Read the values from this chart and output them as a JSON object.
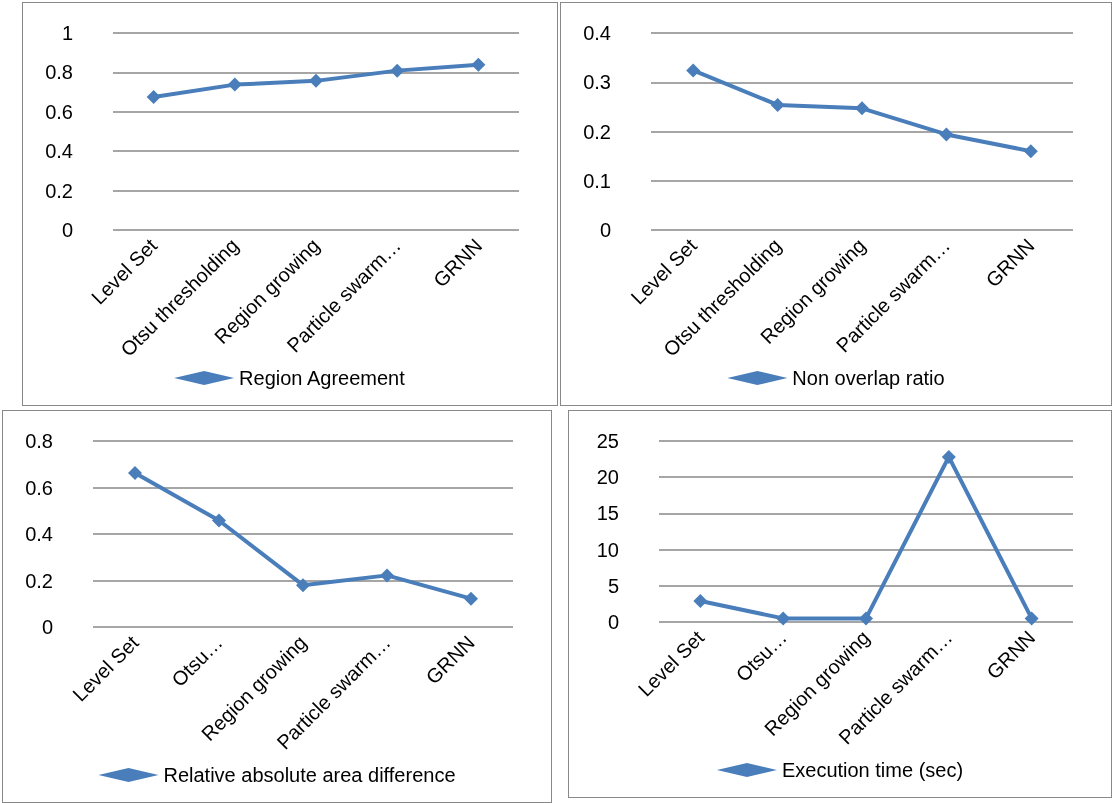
{
  "chart_data": [
    {
      "type": "line",
      "categories": [
        "Level Set",
        "Otsu thresholding",
        "Region growing",
        "Particle swarm…",
        "GRNN"
      ],
      "series": [
        {
          "name": "Region Agreement",
          "color": "#4a7ebb",
          "values": [
            0.675,
            0.738,
            0.757,
            0.809,
            0.839
          ]
        }
      ],
      "ylim": [
        0,
        1
      ],
      "yticks": [
        0,
        0.2,
        0.4,
        0.6,
        0.8,
        1
      ],
      "grid": "y",
      "legend": "bottom",
      "marker": "diamond",
      "line_style": "solid"
    },
    {
      "type": "line",
      "categories": [
        "Level Set",
        "Otsu thresholding",
        "Region growing",
        "Particle swarm…",
        "GRNN"
      ],
      "series": [
        {
          "name": "Non overlap ratio",
          "color": "#4a7ebb",
          "values": [
            0.324,
            0.254,
            0.247,
            0.194,
            0.16
          ]
        }
      ],
      "ylim": [
        0,
        0.4
      ],
      "yticks": [
        0,
        0.1,
        0.2,
        0.3,
        0.4
      ],
      "grid": "y",
      "legend": "bottom",
      "marker": "diamond",
      "line_style": "solid"
    },
    {
      "type": "line",
      "categories": [
        "Level Set",
        "Otsu…",
        "Region growing",
        "Particle swarm…",
        "GRNN"
      ],
      "series": [
        {
          "name": "Relative absolute area difference",
          "color": "#4a7ebb",
          "values": [
            0.662,
            0.458,
            0.18,
            0.222,
            0.122
          ]
        }
      ],
      "ylim": [
        0,
        0.8
      ],
      "yticks": [
        0,
        0.2,
        0.4,
        0.6,
        0.8
      ],
      "grid": "y",
      "legend": "bottom",
      "marker": "diamond",
      "line_style": "solid"
    },
    {
      "type": "line",
      "categories": [
        "Level Set",
        "Otsu…",
        "Region growing",
        "Particle swarm…",
        "GRNN"
      ],
      "series": [
        {
          "name": "Execution time (sec)",
          "color": "#4a7ebb",
          "values": [
            2.9,
            0.5,
            0.5,
            22.8,
            0.5
          ]
        }
      ],
      "ylim": [
        0,
        25
      ],
      "yticks": [
        0,
        5,
        10,
        15,
        20,
        25
      ],
      "grid": "y",
      "legend": "bottom",
      "marker": "diamond",
      "line_style": "solid"
    }
  ]
}
